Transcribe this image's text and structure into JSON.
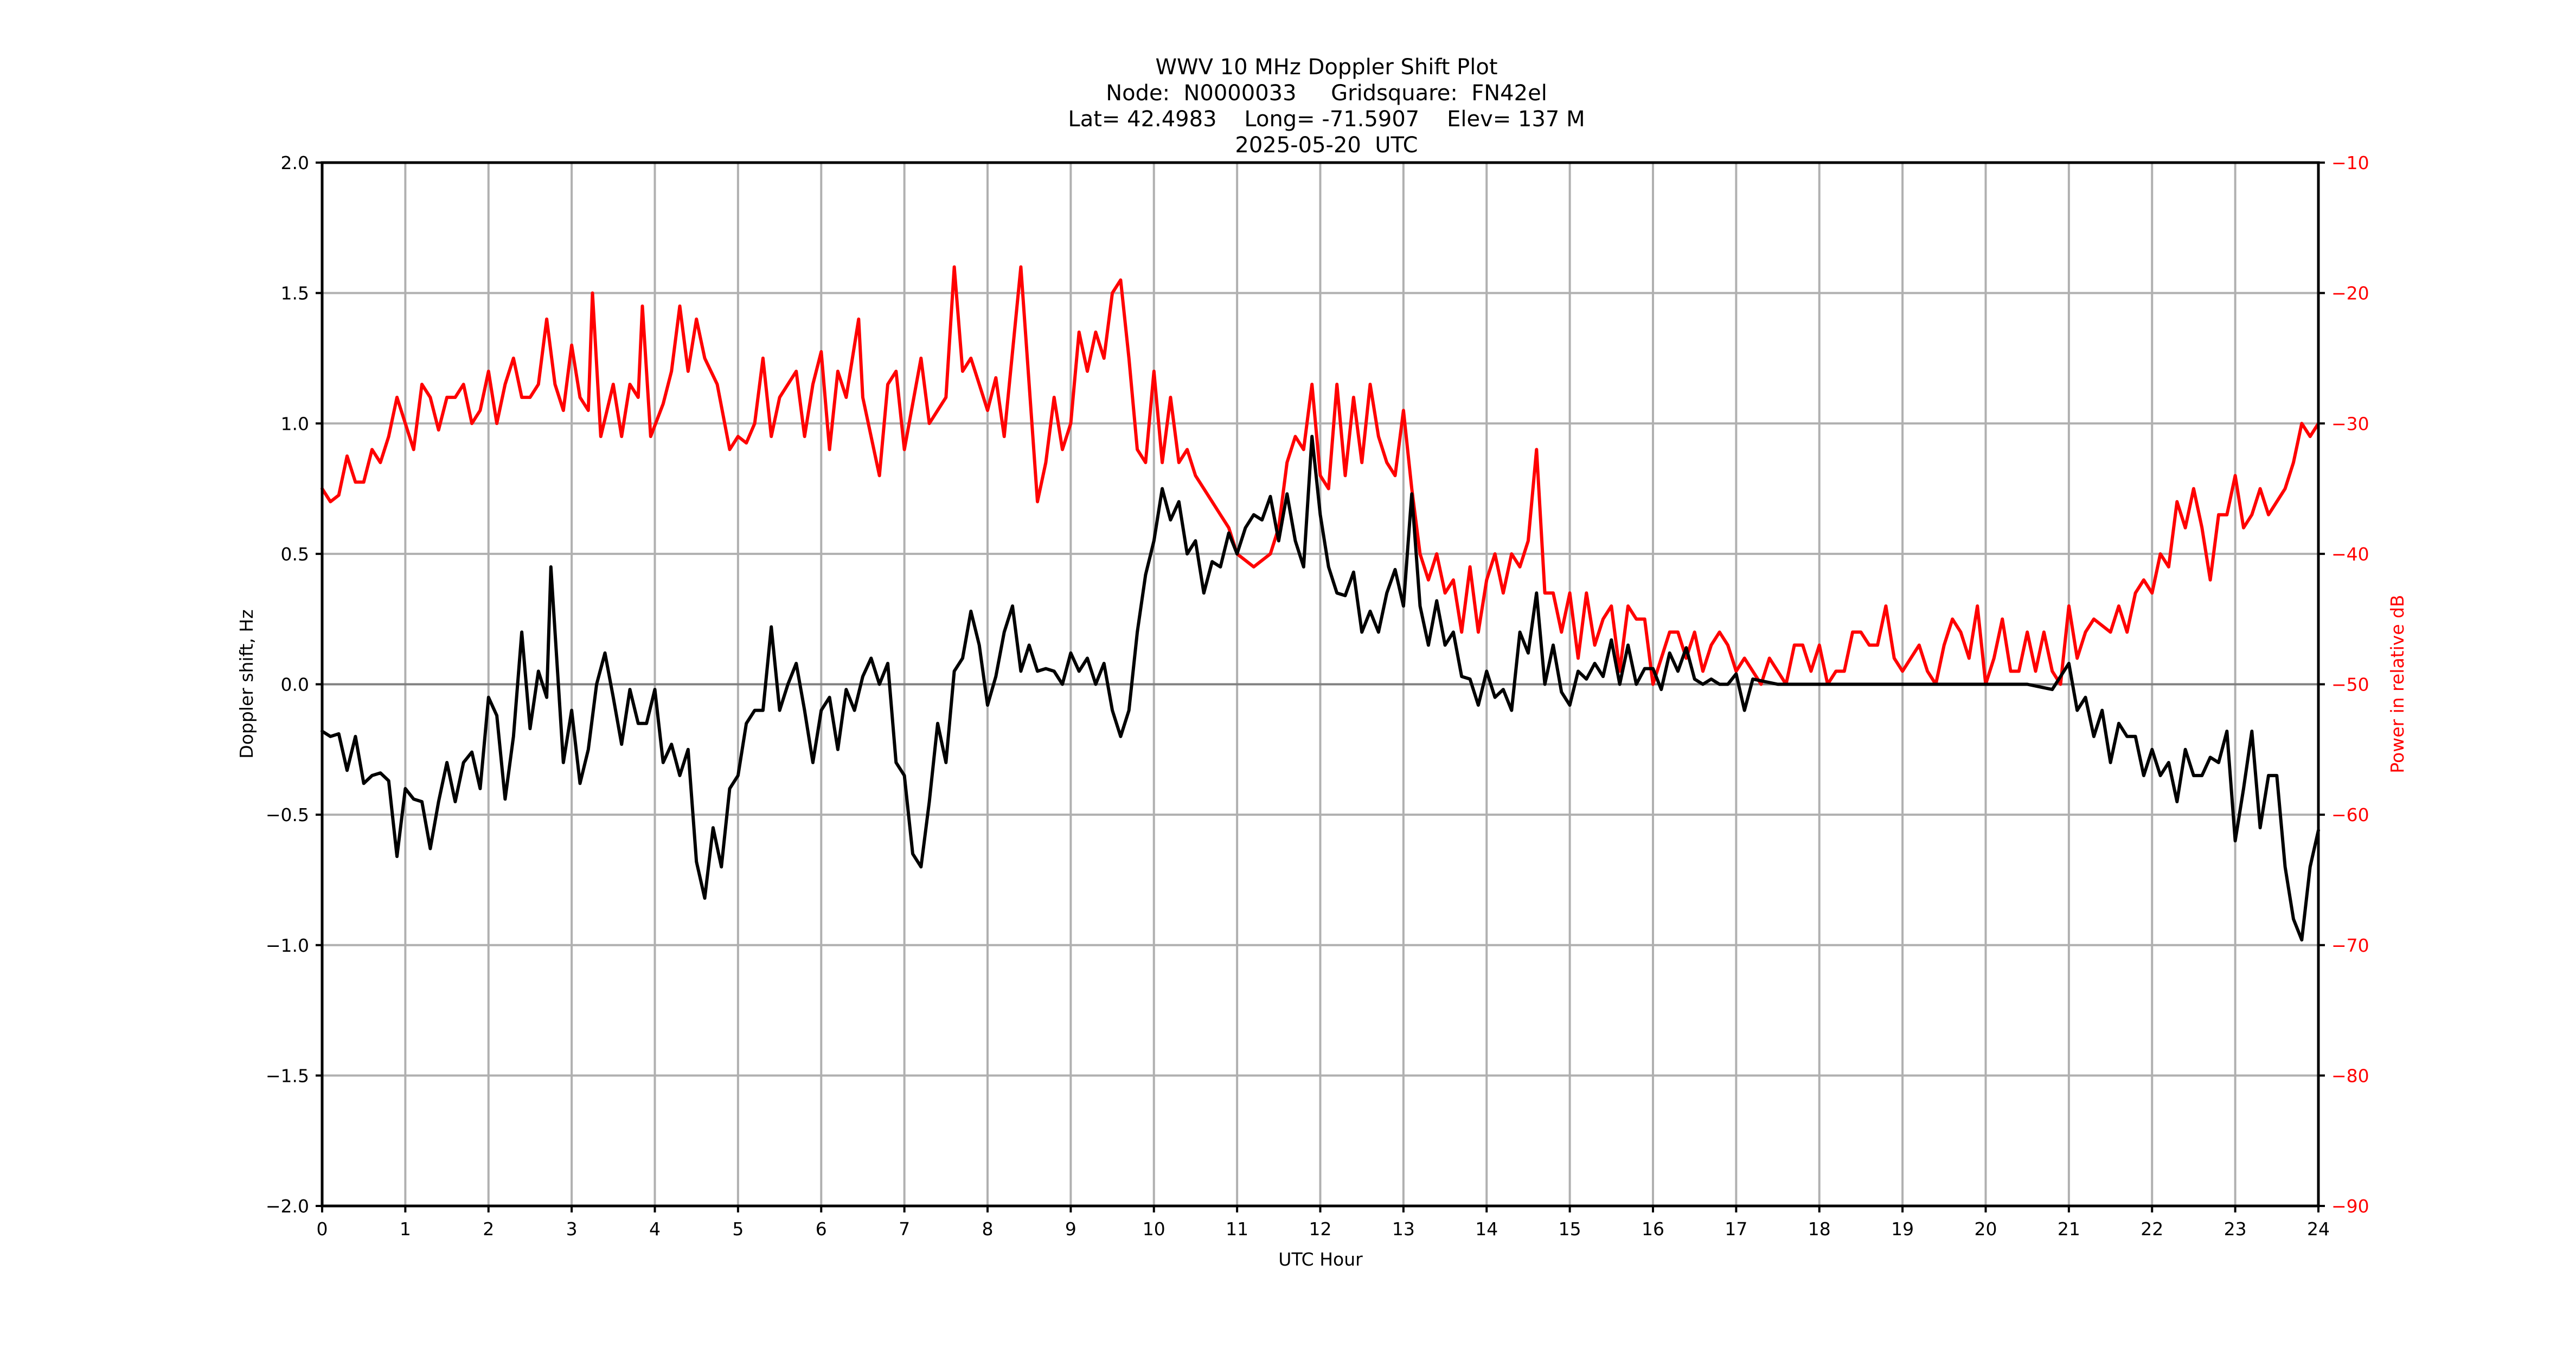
{
  "title": {
    "line1": "WWV 10 MHz Doppler Shift Plot",
    "line2": "Node:  N0000033     Gridsquare:  FN42el",
    "line3": "Lat= 42.4983    Long= -71.5907    Elev= 137 M",
    "line4": "2025-05-20  UTC"
  },
  "colors": {
    "doppler": "#000000",
    "power": "#ff0000",
    "grid": "#b0b0b0",
    "zero_line": "#808080",
    "axis": "#000000"
  },
  "chart_data": {
    "type": "line",
    "title": "WWV 10 MHz Doppler Shift Plot",
    "subtitle": [
      "Node:  N0000033     Gridsquare:  FN42el",
      "Lat= 42.4983    Long= -71.5907    Elev= 137 M",
      "2025-05-20  UTC"
    ],
    "xlabel": "UTC Hour",
    "ylabel": "Doppler shift, Hz",
    "y2label": "Power in relative dB",
    "xlim": [
      0,
      24
    ],
    "ylim": [
      -2.0,
      2.0
    ],
    "y2lim": [
      -90,
      -10
    ],
    "grid": true,
    "legend": null,
    "x_ticks": [
      "0",
      "1",
      "2",
      "3",
      "4",
      "5",
      "6",
      "7",
      "8",
      "9",
      "10",
      "11",
      "12",
      "13",
      "14",
      "15",
      "16",
      "17",
      "18",
      "19",
      "20",
      "21",
      "22",
      "23",
      "24"
    ],
    "y_ticks": [
      "2.0",
      "1.5",
      "1.0",
      "0.5",
      "0.0",
      "−0.5",
      "−1.0",
      "−1.5",
      "−2.0"
    ],
    "y2_ticks": [
      "−10",
      "−20",
      "−30",
      "−40",
      "−50",
      "−60",
      "−70",
      "−80",
      "−90"
    ],
    "series": [
      {
        "name": "Doppler shift, Hz",
        "axis": "left",
        "color": "#000000",
        "x": [
          0.0,
          0.1,
          0.2,
          0.3,
          0.4,
          0.5,
          0.6,
          0.7,
          0.8,
          0.9,
          1.0,
          1.1,
          1.2,
          1.3,
          1.4,
          1.5,
          1.6,
          1.7,
          1.8,
          1.9,
          2.0,
          2.1,
          2.2,
          2.3,
          2.4,
          2.5,
          2.6,
          2.7,
          2.75,
          2.9,
          3.0,
          3.1,
          3.2,
          3.3,
          3.4,
          3.5,
          3.6,
          3.7,
          3.8,
          3.9,
          4.0,
          4.1,
          4.2,
          4.3,
          4.4,
          4.5,
          4.6,
          4.7,
          4.8,
          4.9,
          5.0,
          5.1,
          5.2,
          5.3,
          5.4,
          5.5,
          5.6,
          5.7,
          5.8,
          5.9,
          6.0,
          6.1,
          6.2,
          6.3,
          6.4,
          6.5,
          6.6,
          6.7,
          6.8,
          6.9,
          7.0,
          7.1,
          7.2,
          7.3,
          7.4,
          7.5,
          7.6,
          7.7,
          7.8,
          7.9,
          8.0,
          8.1,
          8.2,
          8.3,
          8.4,
          8.5,
          8.6,
          8.7,
          8.8,
          8.9,
          9.0,
          9.1,
          9.2,
          9.3,
          9.4,
          9.5,
          9.6,
          9.7,
          9.8,
          9.9,
          10.0,
          10.1,
          10.2,
          10.3,
          10.4,
          10.5,
          10.6,
          10.7,
          10.8,
          10.9,
          11.0,
          11.1,
          11.2,
          11.3,
          11.4,
          11.5,
          11.6,
          11.7,
          11.8,
          11.9,
          12.0,
          12.1,
          12.2,
          12.3,
          12.4,
          12.5,
          12.6,
          12.7,
          12.8,
          12.9,
          13.0,
          13.1,
          13.2,
          13.3,
          13.4,
          13.5,
          13.6,
          13.7,
          13.8,
          13.9,
          14.0,
          14.1,
          14.2,
          14.3,
          14.4,
          14.5,
          14.6,
          14.7,
          14.8,
          14.9,
          15.0,
          15.1,
          15.2,
          15.3,
          15.4,
          15.5,
          15.6,
          15.7,
          15.8,
          15.9,
          16.0,
          16.1,
          16.2,
          16.3,
          16.4,
          16.5,
          16.6,
          16.7,
          16.8,
          16.9,
          17.0,
          17.1,
          17.2,
          17.5,
          18.0,
          18.5,
          19.0,
          19.5,
          20.0,
          20.5,
          20.8,
          21.0,
          21.1,
          21.2,
          21.3,
          21.4,
          21.5,
          21.6,
          21.7,
          21.8,
          21.9,
          22.0,
          22.1,
          22.2,
          22.3,
          22.4,
          22.5,
          22.6,
          22.7,
          22.8,
          22.9,
          23.0,
          23.1,
          23.2,
          23.3,
          23.4,
          23.5,
          23.6,
          23.7,
          23.8,
          23.9,
          24.0
        ],
        "y": [
          -0.18,
          -0.2,
          -0.19,
          -0.33,
          -0.2,
          -0.38,
          -0.35,
          -0.34,
          -0.37,
          -0.66,
          -0.4,
          -0.44,
          -0.45,
          -0.63,
          -0.45,
          -0.3,
          -0.45,
          -0.3,
          -0.26,
          -0.4,
          -0.05,
          -0.12,
          -0.44,
          -0.2,
          0.2,
          -0.17,
          0.05,
          -0.05,
          0.45,
          -0.3,
          -0.1,
          -0.38,
          -0.25,
          0.0,
          0.12,
          -0.05,
          -0.23,
          -0.02,
          -0.15,
          -0.15,
          -0.02,
          -0.3,
          -0.23,
          -0.35,
          -0.25,
          -0.68,
          -0.82,
          -0.55,
          -0.7,
          -0.4,
          -0.35,
          -0.15,
          -0.1,
          -0.1,
          0.22,
          -0.1,
          0.0,
          0.08,
          -0.1,
          -0.3,
          -0.1,
          -0.05,
          -0.25,
          -0.02,
          -0.1,
          0.03,
          0.1,
          0.0,
          0.08,
          -0.3,
          -0.35,
          -0.65,
          -0.7,
          -0.45,
          -0.15,
          -0.3,
          0.05,
          0.1,
          0.28,
          0.15,
          -0.08,
          0.03,
          0.2,
          0.3,
          0.05,
          0.15,
          0.05,
          0.06,
          0.05,
          0.0,
          0.12,
          0.05,
          0.1,
          0.0,
          0.08,
          -0.1,
          -0.2,
          -0.1,
          0.2,
          0.42,
          0.55,
          0.75,
          0.63,
          0.7,
          0.5,
          0.55,
          0.35,
          0.47,
          0.45,
          0.58,
          0.5,
          0.6,
          0.65,
          0.63,
          0.72,
          0.55,
          0.73,
          0.55,
          0.45,
          0.95,
          0.65,
          0.45,
          0.35,
          0.34,
          0.43,
          0.2,
          0.28,
          0.2,
          0.35,
          0.44,
          0.3,
          0.73,
          0.3,
          0.15,
          0.32,
          0.15,
          0.2,
          0.03,
          0.02,
          -0.08,
          0.05,
          -0.05,
          -0.02,
          -0.1,
          0.2,
          0.12,
          0.35,
          0.0,
          0.15,
          -0.03,
          -0.08,
          0.05,
          0.02,
          0.08,
          0.03,
          0.17,
          0.0,
          0.15,
          0.0,
          0.06,
          0.06,
          -0.02,
          0.12,
          0.05,
          0.14,
          0.02,
          0.0,
          0.02,
          0.0,
          0.0,
          0.04,
          -0.1,
          0.02,
          0.0,
          0.0,
          0.0,
          0.0,
          0.0,
          0.0,
          0.0,
          -0.02,
          0.08,
          -0.1,
          -0.05,
          -0.2,
          -0.1,
          -0.3,
          -0.15,
          -0.2,
          -0.2,
          -0.35,
          -0.25,
          -0.35,
          -0.3,
          -0.45,
          -0.25,
          -0.35,
          -0.35,
          -0.28,
          -0.3,
          -0.18,
          -0.6,
          -0.4,
          -0.18,
          -0.55,
          -0.35,
          -0.35,
          -0.7,
          -0.9,
          -0.98,
          -0.7,
          -0.56
        ]
      },
      {
        "name": "Power in relative dB",
        "axis": "right",
        "color": "#ff0000",
        "x": [
          0.0,
          0.1,
          0.2,
          0.3,
          0.4,
          0.5,
          0.6,
          0.7,
          0.8,
          0.9,
          1.0,
          1.1,
          1.2,
          1.3,
          1.4,
          1.5,
          1.6,
          1.7,
          1.8,
          1.9,
          2.0,
          2.1,
          2.2,
          2.3,
          2.4,
          2.5,
          2.6,
          2.7,
          2.8,
          2.9,
          3.0,
          3.1,
          3.2,
          3.25,
          3.35,
          3.5,
          3.6,
          3.7,
          3.8,
          3.85,
          3.95,
          4.1,
          4.2,
          4.3,
          4.4,
          4.5,
          4.6,
          4.75,
          4.9,
          5.0,
          5.1,
          5.2,
          5.3,
          5.4,
          5.5,
          5.7,
          5.8,
          5.9,
          6.0,
          6.1,
          6.2,
          6.3,
          6.45,
          6.5,
          6.7,
          6.8,
          6.9,
          7.0,
          7.2,
          7.3,
          7.5,
          7.6,
          7.7,
          7.8,
          7.9,
          8.0,
          8.1,
          8.2,
          8.4,
          8.5,
          8.6,
          8.7,
          8.8,
          8.9,
          9.0,
          9.1,
          9.2,
          9.3,
          9.4,
          9.5,
          9.6,
          9.7,
          9.8,
          9.9,
          10.0,
          10.1,
          10.2,
          10.3,
          10.4,
          10.5,
          10.6,
          10.7,
          10.8,
          10.9,
          11.0,
          11.2,
          11.4,
          11.5,
          11.6,
          11.7,
          11.8,
          11.9,
          12.0,
          12.1,
          12.2,
          12.3,
          12.4,
          12.5,
          12.6,
          12.7,
          12.8,
          12.9,
          13.0,
          13.1,
          13.2,
          13.3,
          13.4,
          13.5,
          13.6,
          13.7,
          13.8,
          13.9,
          14.0,
          14.1,
          14.2,
          14.3,
          14.4,
          14.5,
          14.6,
          14.7,
          14.8,
          14.9,
          15.0,
          15.1,
          15.2,
          15.3,
          15.4,
          15.5,
          15.6,
          15.7,
          15.8,
          15.9,
          16.0,
          16.2,
          16.3,
          16.4,
          16.5,
          16.6,
          16.7,
          16.8,
          16.9,
          17.0,
          17.1,
          17.3,
          17.4,
          17.6,
          17.7,
          17.8,
          17.9,
          18.0,
          18.1,
          18.2,
          18.3,
          18.4,
          18.5,
          18.6,
          18.7,
          18.8,
          18.9,
          19.0,
          19.2,
          19.3,
          19.4,
          19.5,
          19.6,
          19.7,
          19.8,
          19.9,
          20.0,
          20.1,
          20.2,
          20.3,
          20.4,
          20.5,
          20.6,
          20.7,
          20.8,
          20.9,
          21.0,
          21.1,
          21.2,
          21.3,
          21.5,
          21.6,
          21.7,
          21.8,
          21.9,
          22.0,
          22.1,
          22.2,
          22.3,
          22.4,
          22.5,
          22.6,
          22.7,
          22.8,
          22.9,
          23.0,
          23.1,
          23.2,
          23.3,
          23.4,
          23.5,
          23.6,
          23.7,
          23.8,
          23.9,
          24.0
        ],
        "y": [
          -35,
          -36,
          -35.5,
          -32.5,
          -34.5,
          -34.5,
          -32,
          -33,
          -31,
          -28,
          -30,
          -32,
          -27,
          -28,
          -30.5,
          -28,
          -28,
          -27,
          -30,
          -29,
          -26,
          -30,
          -27,
          -25,
          -28,
          -28,
          -27,
          -22,
          -27,
          -29,
          -24,
          -28,
          -29,
          -20,
          -31,
          -27,
          -31,
          -27,
          -28,
          -21,
          -31,
          -28.5,
          -26,
          -21,
          -26,
          -22,
          -25,
          -27,
          -32,
          -31,
          -31.5,
          -30,
          -25,
          -31,
          -28,
          -26,
          -31,
          -27,
          -24.5,
          -32,
          -26,
          -28,
          -22,
          -28,
          -34,
          -27,
          -26,
          -32,
          -25,
          -30,
          -28,
          -18,
          -26,
          -25,
          -27,
          -29,
          -26.5,
          -31,
          -18,
          -27,
          -36,
          -33,
          -28,
          -32,
          -30,
          -23,
          -26,
          -23,
          -25,
          -20,
          -19,
          -25,
          -32,
          -33,
          -26,
          -33,
          -28,
          -33,
          -32,
          -34,
          -35,
          -36,
          -37,
          -38,
          -40,
          -41,
          -40,
          -38,
          -33,
          -31,
          -32,
          -27,
          -34,
          -35,
          -27,
          -34,
          -28,
          -33,
          -27,
          -31,
          -33,
          -34,
          -29,
          -35,
          -40,
          -42,
          -40,
          -43,
          -42,
          -46,
          -41,
          -46,
          -42,
          -40,
          -43,
          -40,
          -41,
          -39,
          -32,
          -43,
          -43,
          -46,
          -43,
          -48,
          -43,
          -47,
          -45,
          -44,
          -49,
          -44,
          -45,
          -45,
          -50,
          -46,
          -46,
          -48,
          -46,
          -49,
          -47,
          -46,
          -47,
          -49,
          -48,
          -50,
          -48,
          -50,
          -47,
          -47,
          -49,
          -47,
          -50,
          -49,
          -49,
          -46,
          -46,
          -47,
          -47,
          -44,
          -48,
          -49,
          -47,
          -49,
          -50,
          -47,
          -45,
          -46,
          -48,
          -44,
          -50,
          -48,
          -45,
          -49,
          -49,
          -46,
          -49,
          -46,
          -49,
          -50,
          -44,
          -48,
          -46,
          -45,
          -46,
          -44,
          -46,
          -43,
          -42,
          -43,
          -40,
          -41,
          -36,
          -38,
          -35,
          -38,
          -42,
          -37,
          -37,
          -34,
          -38,
          -37,
          -35,
          -37,
          -36,
          -35,
          -33,
          -30,
          -31,
          -30
        ]
      }
    ]
  }
}
